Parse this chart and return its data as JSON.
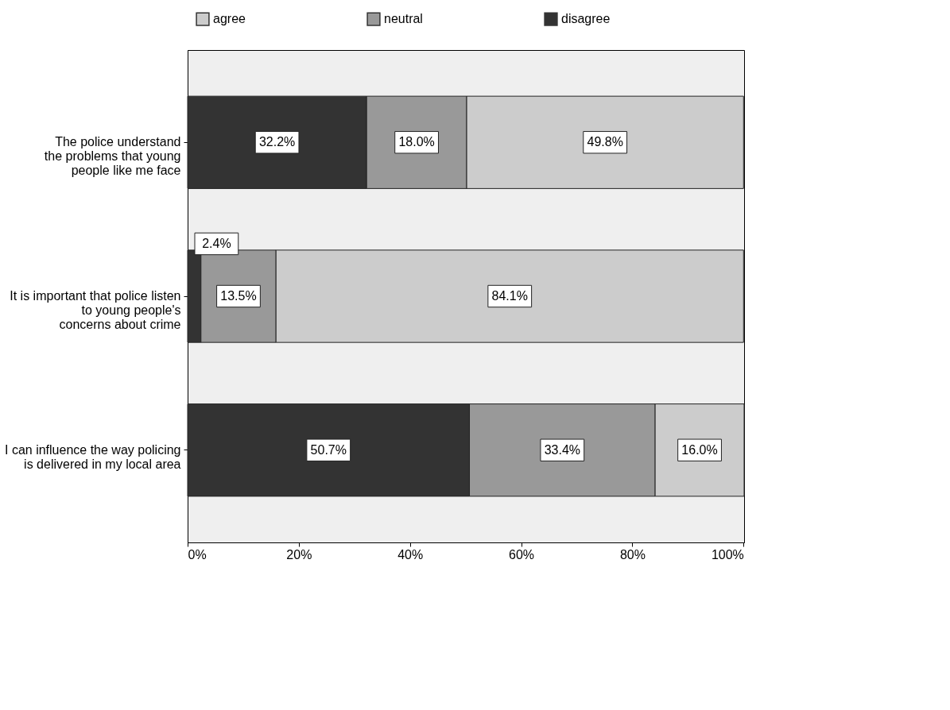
{
  "chart_data": {
    "type": "bar",
    "orientation": "horizontal",
    "stacked": true,
    "legend": "top",
    "grid": false,
    "categories": [
      "The police understand\nthe problems that young\npeople like me face",
      "It is important that police listen\nto young people's\nconcerns about crime",
      "I can influence the way policing\nis delivered in my local area"
    ],
    "series": [
      {
        "name": "disagree",
        "color": "#333333",
        "values": [
          32.2,
          2.4,
          50.7
        ],
        "value_labels": [
          "32.2%",
          "2.4%",
          "50.7%"
        ]
      },
      {
        "name": "neutral",
        "color": "#999999",
        "values": [
          18.0,
          13.5,
          33.4
        ],
        "value_labels": [
          "18.0%",
          "13.5%",
          "33.4%"
        ]
      },
      {
        "name": "agree",
        "color": "#cccccc",
        "values": [
          49.8,
          84.1,
          16.0
        ],
        "value_labels": [
          "49.8%",
          "84.1%",
          "16.0%"
        ]
      }
    ],
    "xlim": [
      0,
      100.1
    ],
    "xticks": [
      {
        "value": 0,
        "label": "0%"
      },
      {
        "value": 20,
        "label": "20%"
      },
      {
        "value": 40,
        "label": "40%"
      },
      {
        "value": 60,
        "label": "60%"
      },
      {
        "value": 80,
        "label": "80%"
      },
      {
        "value": 100,
        "label": "100%"
      }
    ]
  }
}
